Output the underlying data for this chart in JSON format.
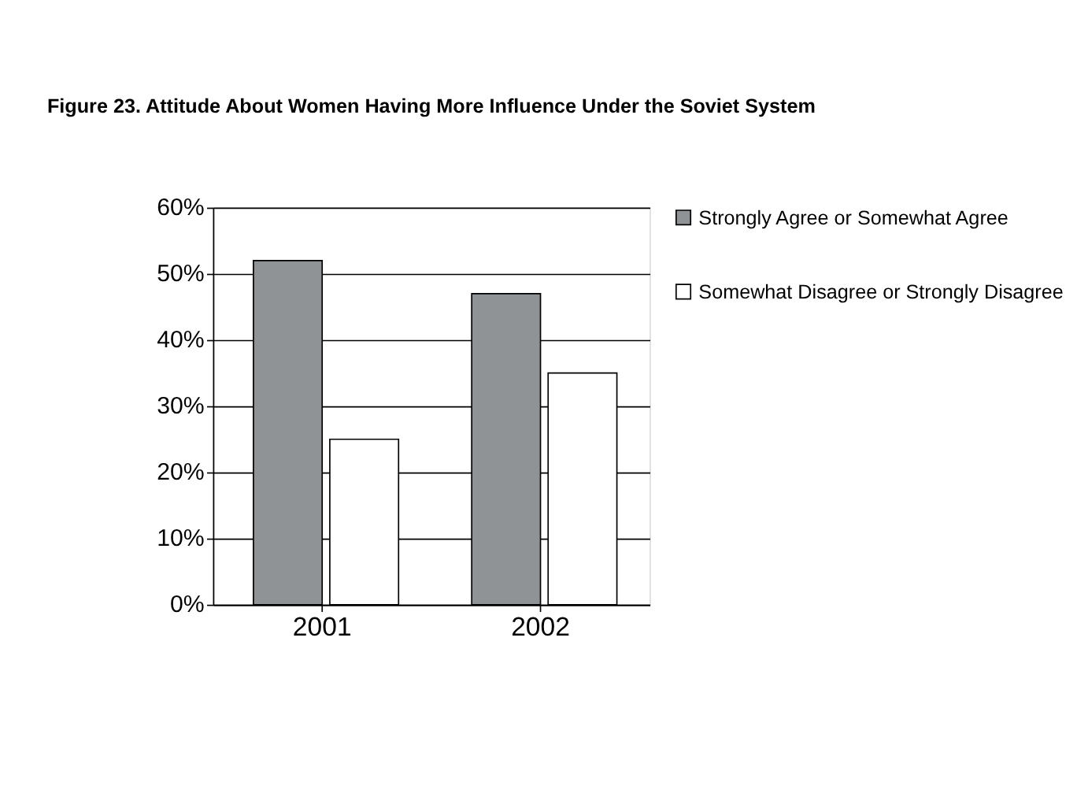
{
  "chart_data": {
    "type": "bar",
    "title": "Figure 23.   Attitude About Women Having More Influence Under the Soviet System",
    "categories": [
      "2001",
      "2002"
    ],
    "series": [
      {
        "name": "Strongly Agree or Somewhat Agree",
        "color": "#8f9396",
        "values": [
          52,
          47
        ]
      },
      {
        "name": "Somewhat Disagree or Strongly Disagree",
        "color": "#ffffff",
        "values": [
          25,
          35
        ]
      }
    ],
    "ylim": [
      0,
      60
    ],
    "yticks": [
      {
        "value": 0,
        "label": "0%"
      },
      {
        "value": 10,
        "label": "10%"
      },
      {
        "value": 20,
        "label": "20%"
      },
      {
        "value": 30,
        "label": "30%"
      },
      {
        "value": 40,
        "label": "40%"
      },
      {
        "value": 50,
        "label": "50%"
      },
      {
        "value": 60,
        "label": "60%"
      }
    ],
    "grid": "y",
    "legend": "right"
  }
}
